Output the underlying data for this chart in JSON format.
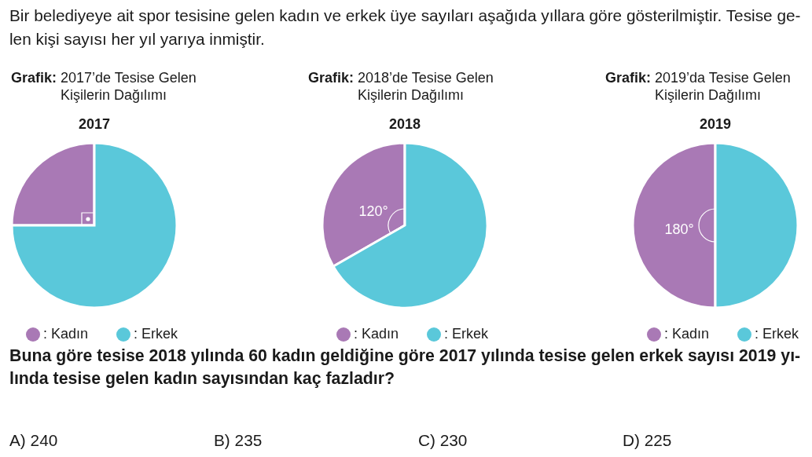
{
  "chart_data": [
    {
      "type": "other",
      "annotations": [
        "Bir belediyeye ait spor tesisine gelen kadın ve erkek üye sayıları aşağıda yıllara göre gösterilmiştir. Tesise ge-\nlen kişi sayısı her yıl yarıya inmiştir."
      ]
    },
    {
      "type": "pie",
      "title": "Grafik: 2017’de Tesise Gelen Kişilerin Dağılımı",
      "subtitle": "2017",
      "categories": [
        ": Kadın",
        ": Erkek"
      ],
      "values": [
        25,
        75
      ],
      "colors": [
        "#a979b5",
        "#5ac8da"
      ],
      "legend": "bottom"
    },
    {
      "type": "pie",
      "title": "Grafik: 2018’de Tesise Gelen Kişilerin Dağılımı",
      "subtitle": "2018",
      "categories": [
        ": Kadın",
        ": Erkek"
      ],
      "values": [
        33.3,
        66.7
      ],
      "colors": [
        "#a979b5",
        "#5ac8da"
      ],
      "legend": "bottom",
      "annotations": [
        "120°"
      ]
    },
    {
      "type": "pie",
      "title": "Grafik: 2019’da Tesise Gelen Kişilerin Dağılımı",
      "subtitle": "2019",
      "categories": [
        ": Kadın",
        ": Erkek"
      ],
      "values": [
        50,
        50
      ],
      "colors": [
        "#a979b5",
        "#5ac8da"
      ],
      "legend": "bottom",
      "annotations": [
        "180°"
      ]
    },
    {
      "type": "other",
      "title": "Buna göre tesise 2018 yılında 60 kadın geldiğine göre 2017 yılında tesise gelen erkek sayısı 2019 yı-\nlında tesise gelen kadın sayısından kaç fazladır?",
      "annotations": [
        "A) 240",
        "B) 235",
        "C) 230",
        "D) 225"
      ]
    }
  ]
}
